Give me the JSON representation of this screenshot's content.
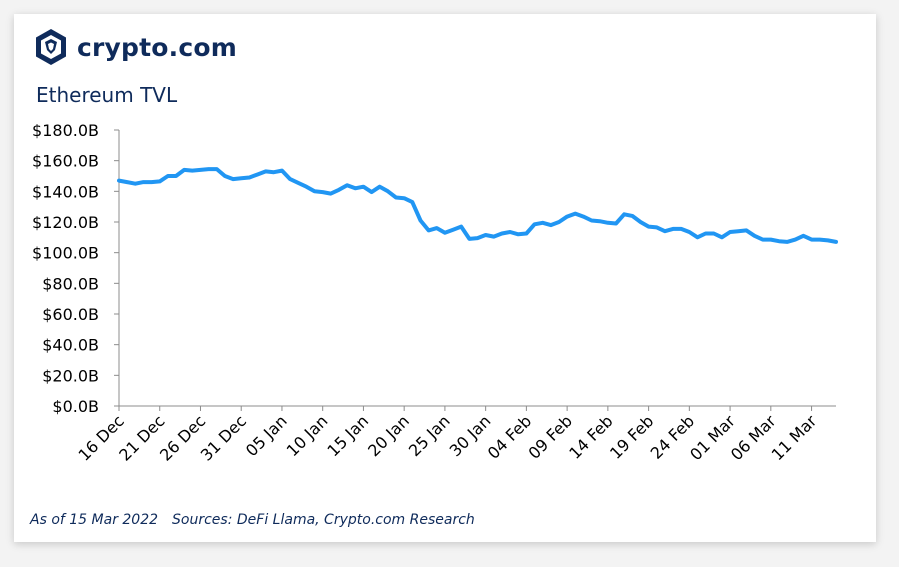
{
  "brand": {
    "name": "crypto.com",
    "logo_icon": "crypto-com-lion-shield-icon"
  },
  "colors": {
    "line": "#2196f3",
    "navy": "#0f2b5b",
    "axis": "#8c8c8c"
  },
  "footer": {
    "as_of": "As of 15 Mar 2022",
    "sources": "Sources: DeFi Llama, Crypto.com Research"
  },
  "chart_data": {
    "type": "line",
    "title": "Ethereum TVL",
    "xlabel": "",
    "ylabel": "",
    "ylim": [
      0,
      180
    ],
    "y_ticks": [
      {
        "value": 180,
        "label": "$180.0B"
      },
      {
        "value": 160,
        "label": "$160.0B"
      },
      {
        "value": 140,
        "label": "$140.0B"
      },
      {
        "value": 120,
        "label": "$120.0B"
      },
      {
        "value": 100,
        "label": "$100.0B"
      },
      {
        "value": 80,
        "label": "$80.0B"
      },
      {
        "value": 60,
        "label": "$60.0B"
      },
      {
        "value": 40,
        "label": "$40.0B"
      },
      {
        "value": 20,
        "label": "$20.0B"
      },
      {
        "value": 0,
        "label": "$0.0B"
      }
    ],
    "x_ticks": [
      "16 Dec",
      "21 Dec",
      "26 Dec",
      "31 Dec",
      "05 Jan",
      "10 Jan",
      "15 Jan",
      "20 Jan",
      "25 Jan",
      "30 Jan",
      "04 Feb",
      "09 Feb",
      "14 Feb",
      "19 Feb",
      "24 Feb",
      "01 Mar",
      "06 Mar",
      "11 Mar"
    ],
    "grid": false,
    "legend": "none",
    "series": [
      {
        "values": [
          147,
          146,
          145,
          146,
          146,
          146.5,
          150,
          150,
          154,
          153.5,
          154,
          154.5,
          154.5,
          150,
          148,
          148.5,
          149,
          151,
          153,
          152.5,
          153.5,
          148,
          145.5,
          143,
          140,
          139.5,
          138.5,
          141,
          144,
          142,
          143,
          139.5,
          143,
          140,
          136,
          135.5,
          133,
          121,
          114.5,
          116,
          113,
          115,
          117,
          109,
          109.5,
          111.5,
          110.5,
          112.5,
          113.5,
          112,
          112.5,
          118.5,
          119.5,
          118,
          120,
          123.5,
          125.5,
          123.5,
          121,
          120.5,
          119.5,
          119,
          125,
          124,
          120,
          117,
          116.5,
          114,
          115.5,
          115.5,
          113.5,
          110,
          112.5,
          112.5,
          110,
          113.5,
          114,
          114.5,
          111,
          108.5,
          108.5,
          107.5,
          107,
          108.5,
          111,
          108.5,
          108.5,
          108,
          107
        ]
      }
    ]
  }
}
